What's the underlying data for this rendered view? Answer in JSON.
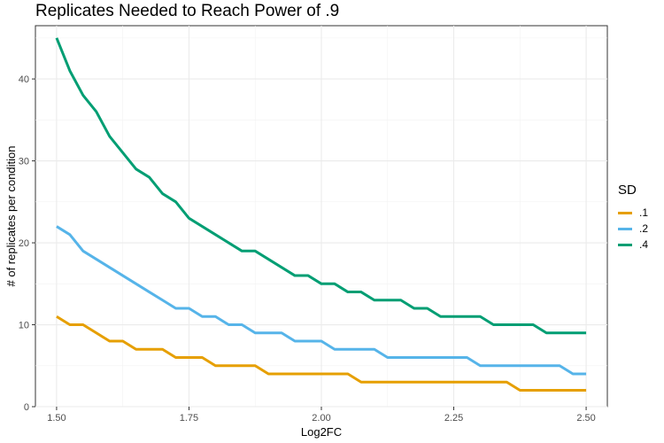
{
  "chart_data": {
    "type": "line",
    "title": "Replicates Needed to Reach Power of .9",
    "xlabel": "Log2FC",
    "ylabel": "# of replicates per condition",
    "xlim": [
      1.46,
      2.54
    ],
    "ylim": [
      0,
      46.5
    ],
    "xticks": [
      1.5,
      1.75,
      2.0,
      2.25,
      2.5
    ],
    "xtick_labels": [
      "1.50",
      "1.75",
      "2.00",
      "2.25",
      "2.50"
    ],
    "yticks": [
      0,
      10,
      20,
      30,
      40
    ],
    "ytick_labels": [
      "0",
      "10",
      "20",
      "30",
      "40"
    ],
    "grid": true,
    "legend_title": "SD",
    "legend_position": "right",
    "x": [
      1.5,
      1.525,
      1.55,
      1.575,
      1.6,
      1.625,
      1.65,
      1.675,
      1.7,
      1.725,
      1.75,
      1.775,
      1.8,
      1.825,
      1.85,
      1.875,
      1.9,
      1.925,
      1.95,
      1.975,
      2.0,
      2.025,
      2.05,
      2.075,
      2.1,
      2.125,
      2.15,
      2.175,
      2.2,
      2.225,
      2.25,
      2.275,
      2.3,
      2.325,
      2.35,
      2.375,
      2.4,
      2.425,
      2.45,
      2.475,
      2.5
    ],
    "series": [
      {
        "name": ".1",
        "color": "#E69F00",
        "values": [
          11,
          10,
          10,
          9,
          8,
          8,
          7,
          7,
          7,
          6,
          6,
          6,
          5,
          5,
          5,
          5,
          4,
          4,
          4,
          4,
          4,
          4,
          4,
          3,
          3,
          3,
          3,
          3,
          3,
          3,
          3,
          3,
          3,
          3,
          3,
          2,
          2,
          2,
          2,
          2,
          2
        ]
      },
      {
        "name": ".2",
        "color": "#56B4E9",
        "values": [
          22,
          21,
          19,
          18,
          17,
          16,
          15,
          14,
          13,
          12,
          12,
          11,
          11,
          10,
          10,
          9,
          9,
          9,
          8,
          8,
          8,
          7,
          7,
          7,
          7,
          6,
          6,
          6,
          6,
          6,
          6,
          6,
          5,
          5,
          5,
          5,
          5,
          5,
          5,
          4,
          4
        ]
      },
      {
        "name": ".4",
        "color": "#009E73",
        "values": [
          45,
          41,
          38,
          36,
          33,
          31,
          29,
          28,
          26,
          25,
          23,
          22,
          21,
          20,
          19,
          19,
          18,
          17,
          16,
          16,
          15,
          15,
          14,
          14,
          13,
          13,
          13,
          12,
          12,
          11,
          11,
          11,
          11,
          10,
          10,
          10,
          10,
          9,
          9,
          9,
          9
        ]
      }
    ]
  }
}
